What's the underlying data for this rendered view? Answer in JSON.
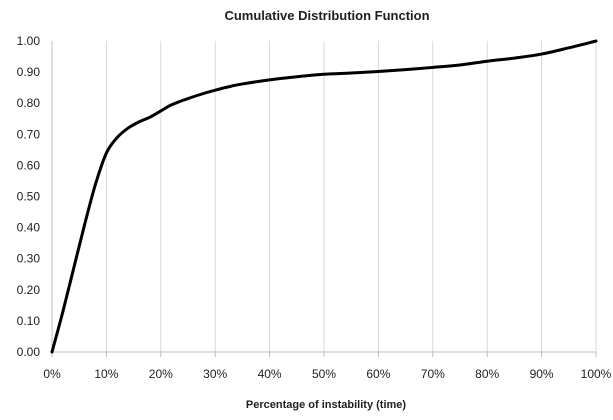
{
  "chart_data": {
    "type": "line",
    "title": "Cumulative Distribution Function",
    "xlabel": "Percentage of instability  (time)",
    "ylabel": "",
    "xlim": [
      0,
      100
    ],
    "ylim": [
      0,
      1
    ],
    "x_ticks": [
      "0%",
      "10%",
      "20%",
      "30%",
      "40%",
      "50%",
      "60%",
      "70%",
      "80%",
      "90%",
      "100%"
    ],
    "y_ticks": [
      "0.00",
      "0.10",
      "0.20",
      "0.30",
      "0.40",
      "0.50",
      "0.60",
      "0.70",
      "0.80",
      "0.90",
      "1.00"
    ],
    "grid": "vertical",
    "legend": "none",
    "series": [
      {
        "color": "#000000",
        "x": [
          0,
          2,
          4,
          6,
          8,
          10,
          12,
          14,
          16,
          18,
          20,
          22,
          25,
          28,
          30,
          33,
          35,
          40,
          45,
          50,
          55,
          60,
          65,
          70,
          75,
          80,
          85,
          90,
          95,
          100
        ],
        "y": [
          0.0,
          0.13,
          0.27,
          0.41,
          0.54,
          0.64,
          0.69,
          0.72,
          0.74,
          0.755,
          0.775,
          0.795,
          0.815,
          0.832,
          0.842,
          0.855,
          0.862,
          0.875,
          0.885,
          0.893,
          0.897,
          0.902,
          0.908,
          0.915,
          0.923,
          0.935,
          0.945,
          0.958,
          0.978,
          1.0
        ]
      }
    ]
  }
}
